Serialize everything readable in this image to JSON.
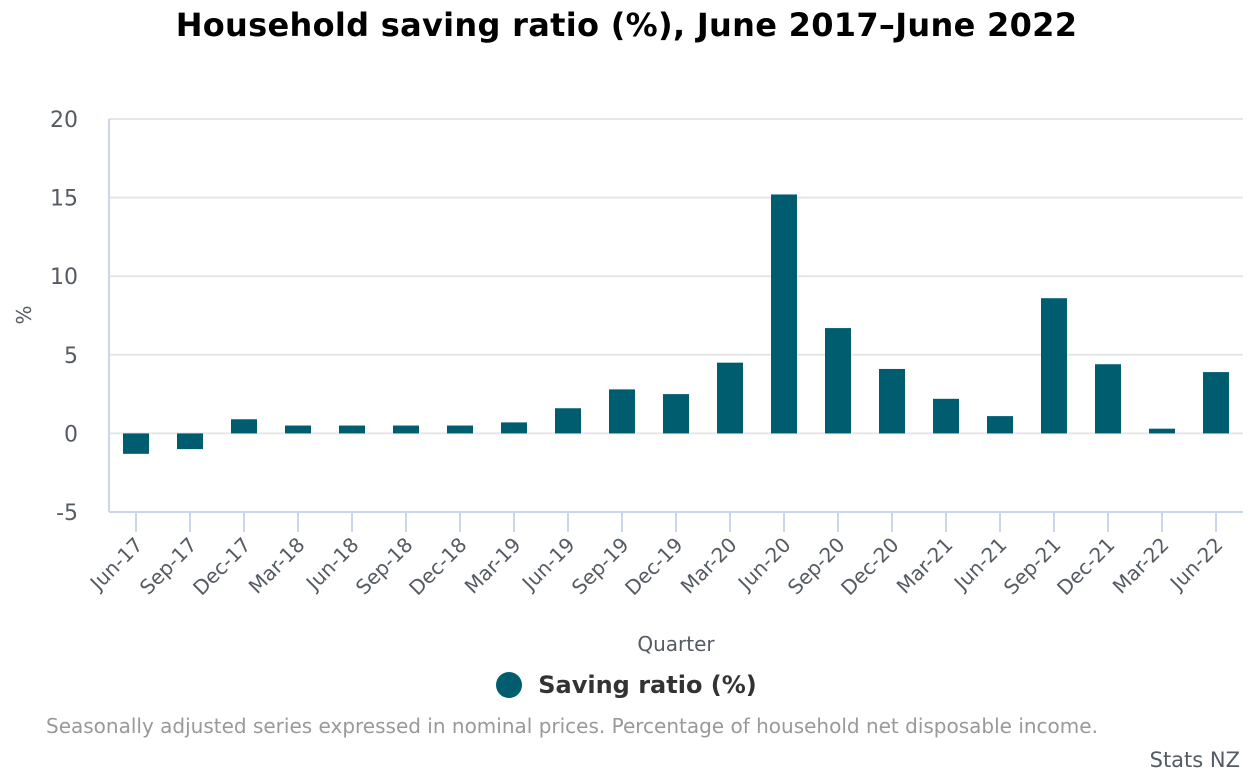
{
  "colors": {
    "bar": "#005d70",
    "grid": "#e6e6e6",
    "axis": "#ccd6eb",
    "tick_text": "#555b63"
  },
  "chart_data": {
    "type": "bar",
    "title": "Household saving ratio (%), June 2017–June 2022",
    "xlabel": "Quarter",
    "ylabel": "%",
    "ylim": [
      -5,
      20
    ],
    "yticks": [
      20,
      15,
      10,
      5,
      0,
      -5
    ],
    "grid": true,
    "legend_placement": "bottom-center",
    "categories": [
      "Jun-17",
      "Sep-17",
      "Dec-17",
      "Mar-18",
      "Jun-18",
      "Sep-18",
      "Dec-18",
      "Mar-19",
      "Jun-19",
      "Sep-19",
      "Dec-19",
      "Mar-20",
      "Jun-20",
      "Sep-20",
      "Dec-20",
      "Mar-21",
      "Jun-21",
      "Sep-21",
      "Dec-21",
      "Mar-22",
      "Jun-22"
    ],
    "series": [
      {
        "name": "Saving ratio (%)",
        "values": [
          -1.3,
          -1.0,
          0.9,
          0.5,
          0.5,
          0.5,
          0.5,
          0.7,
          1.6,
          2.8,
          2.5,
          4.5,
          15.2,
          6.7,
          4.1,
          2.2,
          1.1,
          8.6,
          4.4,
          0.3,
          3.9
        ]
      }
    ],
    "footnote": "Seasonally adjusted series expressed in nominal prices. Percentage of household net disposable income.",
    "source": "Stats NZ"
  }
}
